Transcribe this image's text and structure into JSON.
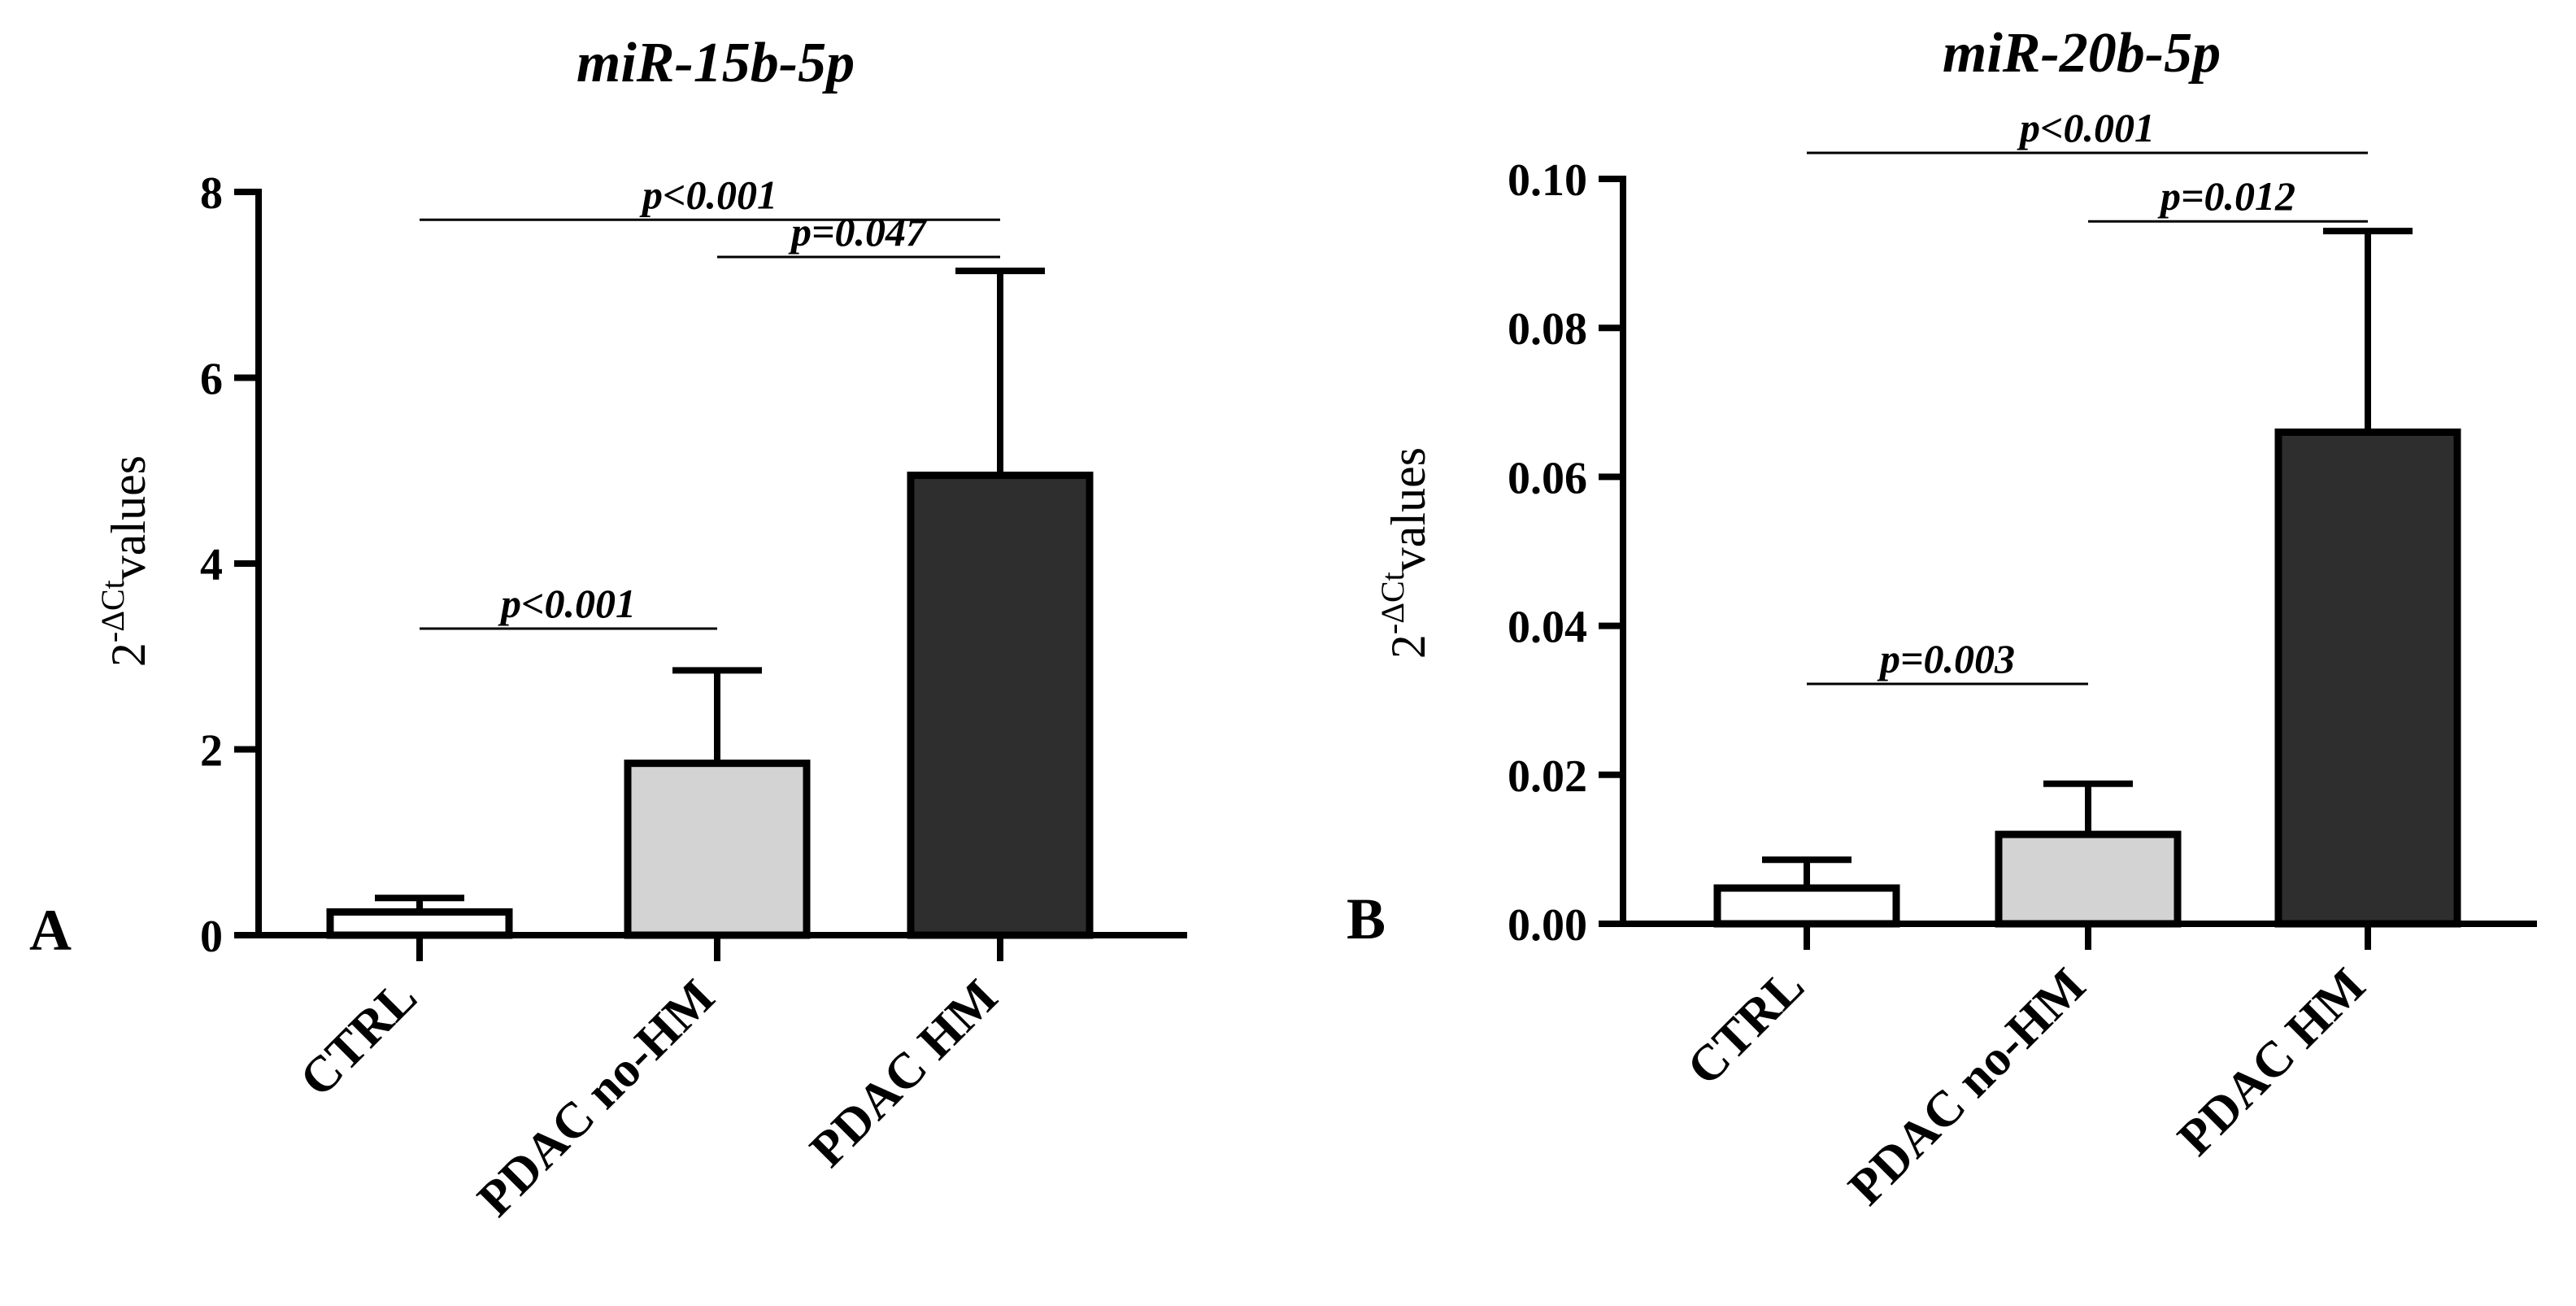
{
  "chart_data": [
    {
      "type": "bar",
      "panel": "A",
      "title": "miR-15b-5p",
      "ylabel": {
        "base": "2",
        "sup": "-ΔCt",
        "rest": "values"
      },
      "categories": [
        "CTRL",
        "PDAC no-HM",
        "PDAC HM"
      ],
      "values": [
        0.25,
        1.85,
        4.95
      ],
      "errors": [
        0.15,
        1.0,
        2.2
      ],
      "bar_colors": [
        "#ffffff",
        "#d3d3d3",
        "#2e2e2e"
      ],
      "ylim": [
        0,
        8
      ],
      "yticks": [
        0,
        2,
        4,
        6,
        8
      ],
      "ytick_labels": [
        "0",
        "2",
        "4",
        "6",
        "8"
      ],
      "comparisons": [
        {
          "label": "p<0.001",
          "from": 0,
          "to": 2,
          "level": 7.7
        },
        {
          "label": "p=0.047",
          "from": 1,
          "to": 2,
          "level": 7.3
        },
        {
          "label": "p<0.001",
          "from": 0,
          "to": 1,
          "level": 3.3
        }
      ]
    },
    {
      "type": "bar",
      "panel": "B",
      "title": "miR-20b-5p",
      "ylabel": {
        "base": "2",
        "sup": "-ΔCt",
        "rest": "values"
      },
      "categories": [
        "CTRL",
        "PDAC no-HM",
        "PDAC HM"
      ],
      "values": [
        0.0048,
        0.012,
        0.066
      ],
      "errors": [
        0.0038,
        0.0068,
        0.027
      ],
      "bar_colors": [
        "#ffffff",
        "#d3d3d3",
        "#2e2e2e"
      ],
      "ylim": [
        0,
        0.1
      ],
      "yticks": [
        0,
        0.02,
        0.04,
        0.06,
        0.08,
        0.1
      ],
      "ytick_labels": [
        "0.00",
        "0.02",
        "0.04",
        "0.06",
        "0.08",
        "0.10"
      ],
      "comparisons": [
        {
          "label": "p<0.001",
          "from": 0,
          "to": 2,
          "level": 0.1035
        },
        {
          "label": "p=0.012",
          "from": 1,
          "to": 2,
          "level": 0.0943
        },
        {
          "label": "p=0.003",
          "from": 0,
          "to": 1,
          "level": 0.0322
        }
      ]
    }
  ]
}
